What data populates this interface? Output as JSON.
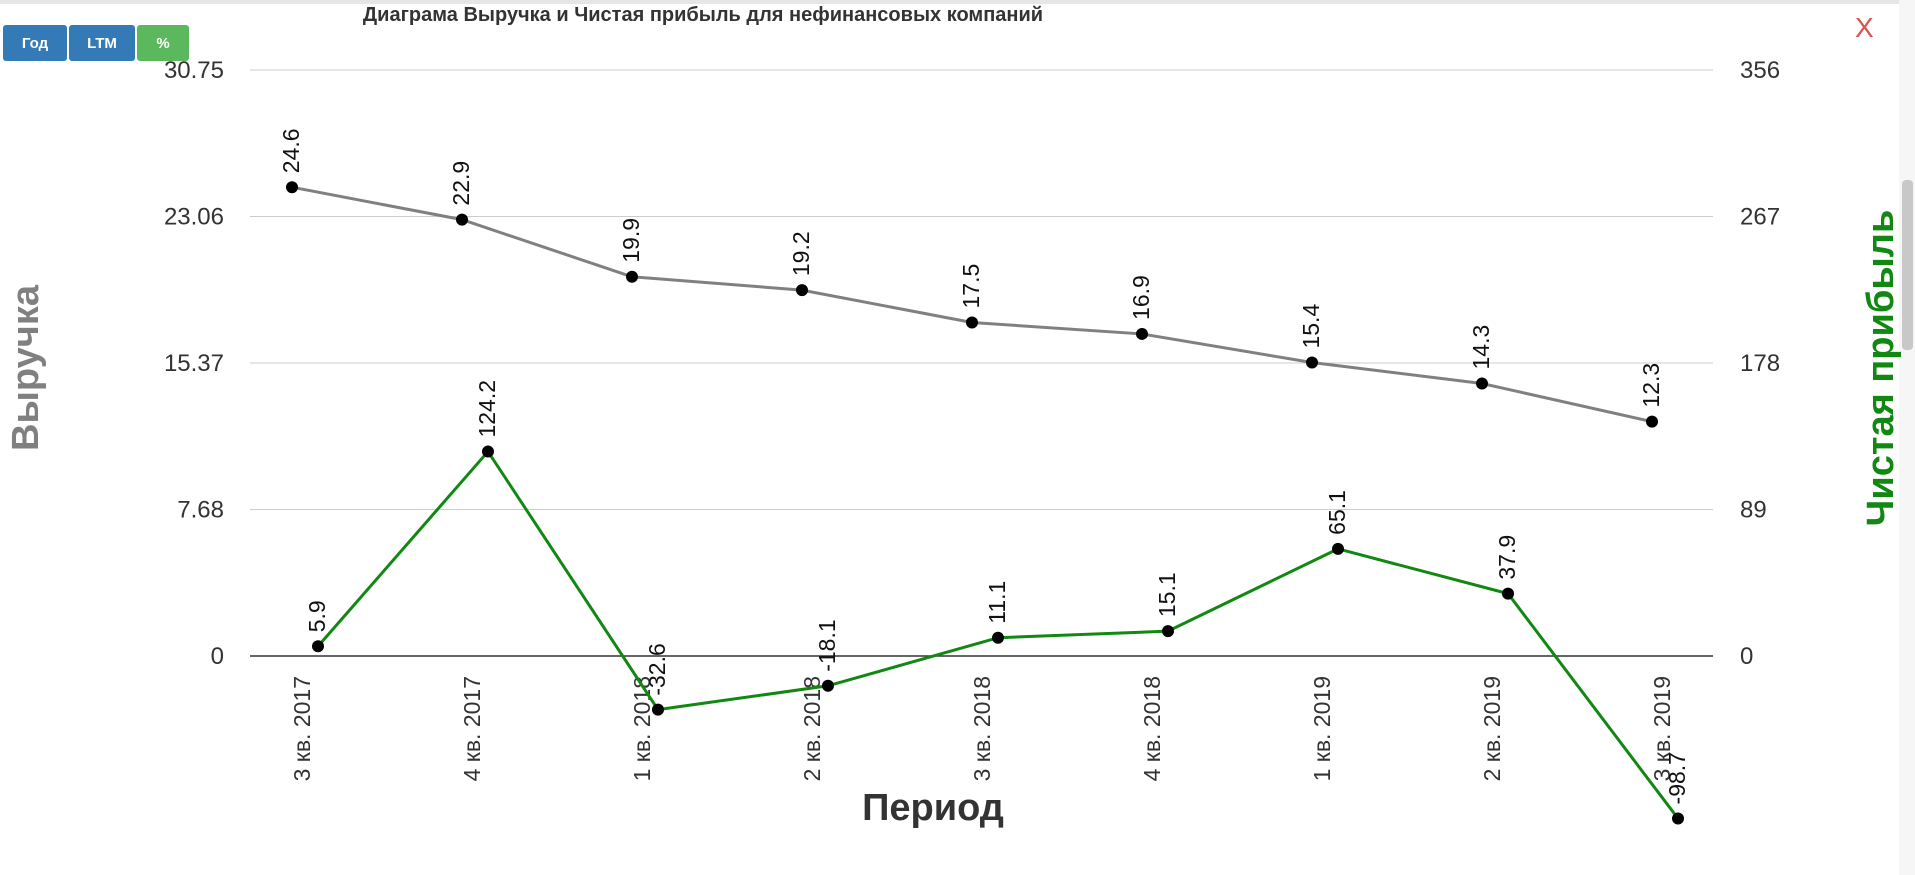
{
  "controls": {
    "year_label": "Год",
    "ltm_label": "LTM",
    "percent_label": "%",
    "close_label": "X"
  },
  "colors": {
    "revenue": "#808080",
    "profit": "#118811",
    "button_blue": "#337ab7",
    "button_green": "#5cb85c",
    "close": "#d9534f"
  },
  "chart_data": {
    "type": "line",
    "title": "Диаграма Выручка и Чистая прибыль для нефинансовых компаний",
    "xlabel": "Период",
    "ylabel": "Выручка",
    "y2label": "Чистая прибыль",
    "categories": [
      "3 кв. 2017",
      "4 кв. 2017",
      "1 кв. 2018",
      "2 кв. 2018",
      "3 кв. 2018",
      "4 кв. 2018",
      "1 кв. 2019",
      "2 кв. 2019",
      "3 кв. 2019"
    ],
    "y_ticks": [
      "0",
      "7.68",
      "15.37",
      "23.06",
      "30.75"
    ],
    "y2_ticks": [
      "0",
      "89",
      "178",
      "267",
      "356"
    ],
    "ylim": [
      0,
      30.75
    ],
    "y2lim": [
      0,
      356
    ],
    "grid": true,
    "series": [
      {
        "axis": "left",
        "values": [
          24.6,
          22.9,
          19.9,
          19.2,
          17.5,
          16.9,
          15.4,
          14.3,
          12.3
        ]
      },
      {
        "axis": "right",
        "values": [
          5.9,
          124.2,
          -32.6,
          -18.1,
          11.1,
          15.1,
          65.1,
          37.9,
          -98.7
        ]
      }
    ]
  }
}
